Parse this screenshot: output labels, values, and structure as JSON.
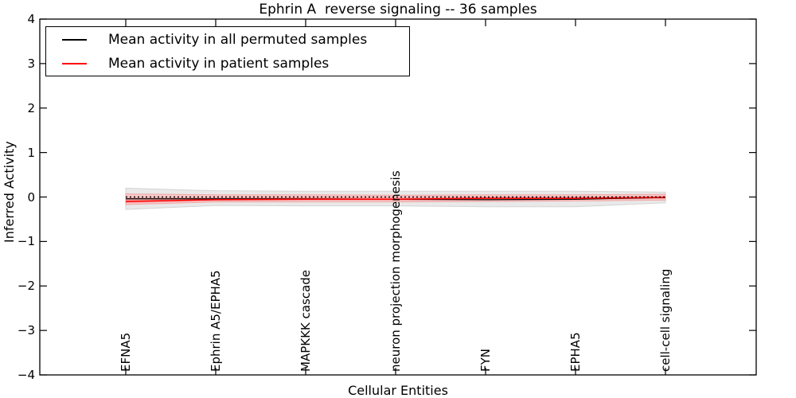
{
  "title": "Ephrin A  reverse signaling -- 36 samples",
  "x_axis": {
    "label": "Cellular Entities"
  },
  "y_axis": {
    "label": "Inferred Activity",
    "tick_values": [
      4,
      3,
      2,
      1,
      0,
      -1,
      -2,
      -3,
      -4
    ],
    "tick_labels": [
      "4",
      "3",
      "2",
      "1",
      "0",
      "−1",
      "−2",
      "−3",
      "−4"
    ]
  },
  "legend": {
    "items": [
      {
        "label": "Mean activity in all permuted samples",
        "color": "#000000",
        "style": "solid"
      },
      {
        "label": "Mean activity in patient samples",
        "color": "#ff0000",
        "style": "solid"
      }
    ],
    "position": "upper left"
  },
  "colors": {
    "permuted_line": "#000000",
    "patient_line": "#ff0000",
    "zero_line": "#000000",
    "permuted_band_fill": "#e9e9e9",
    "permuted_band_edge": "#d4d4d4",
    "patient_band_fill": "#f8c8c8",
    "patient_band_edge": "#f0a6a6",
    "axis": "#000000",
    "background": "#ffffff"
  },
  "chart_data": {
    "type": "line",
    "categories": [
      "EFNA5",
      "Ephrin A5/EPHA5",
      "MAPKKK cascade",
      "neuron projection morphogenesis",
      "FYN",
      "EPHA5",
      "cell-cell signaling"
    ],
    "series": [
      {
        "name": "Mean activity in all permuted samples",
        "color": "#000000",
        "style": "solid",
        "values": [
          -0.04,
          -0.04,
          -0.04,
          -0.05,
          -0.06,
          -0.05,
          -0.01
        ]
      },
      {
        "name": "Mean activity in patient samples",
        "color": "#ff0000",
        "style": "solid",
        "values": [
          -0.1,
          -0.06,
          -0.05,
          -0.05,
          -0.03,
          -0.03,
          -0.01
        ]
      },
      {
        "name": "Zero reference",
        "color": "#000000",
        "style": "dotted",
        "values": [
          0,
          0,
          0,
          0,
          0,
          0,
          0
        ]
      }
    ],
    "bands": [
      {
        "name": "Permuted samples spread",
        "fill": "#e9e9e9",
        "edge": "#d4d4d4",
        "upper": [
          0.2,
          0.14,
          0.13,
          0.13,
          0.13,
          0.13,
          0.11
        ],
        "lower": [
          -0.28,
          -0.19,
          -0.2,
          -0.2,
          -0.22,
          -0.22,
          -0.13
        ]
      },
      {
        "name": "Patient samples spread",
        "fill": "#f8c8c8",
        "edge": "#f0a6a6",
        "upper": [
          0.07,
          0.05,
          0.05,
          0.04,
          0.05,
          0.05,
          0.06
        ],
        "lower": [
          -0.17,
          -0.11,
          -0.11,
          -0.11,
          -0.1,
          -0.09,
          -0.07
        ]
      }
    ],
    "title": "Ephrin A  reverse signaling -- 36 samples",
    "xlabel": "Cellular Entities",
    "ylabel": "Inferred Activity",
    "ylim": [
      -4,
      4
    ],
    "grid": false,
    "legend_position": "upper left"
  }
}
